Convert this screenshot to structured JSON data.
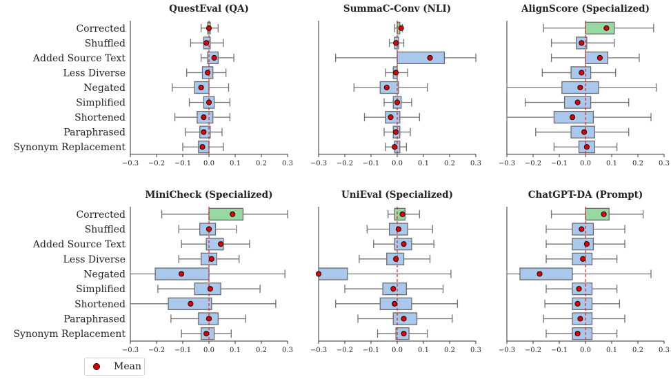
{
  "chart_data": {
    "type": "boxplot",
    "categories": [
      "Corrected",
      "Shuffled",
      "Added Source Text",
      "Less Diverse",
      "Negated",
      "Simplified",
      "Shortened",
      "Paraphrased",
      "Synonym Replacement"
    ],
    "xlim": [
      -0.3,
      0.3
    ],
    "xticks": [
      "−0.3",
      "−0.2",
      "−0.1",
      "0.0",
      "0.1",
      "0.2",
      "0.3"
    ],
    "reference_line_x": 0.0,
    "colors": {
      "box_default": "#aac8eb",
      "box_highlight": "#96d9a2",
      "box_edge": "#6b6b6b",
      "whisker": "#707070",
      "mean_marker": "#e00000",
      "ref_line": "#e02020"
    },
    "legend": {
      "label": "Mean",
      "position": "lower-left"
    },
    "panels": [
      {
        "title": "QuestEval (QA)",
        "boxes": [
          {
            "wl": -0.03,
            "q1": -0.005,
            "q3": 0.005,
            "wh": 0.035,
            "mean": 0.0
          },
          {
            "wl": -0.07,
            "q1": -0.02,
            "q3": 0.005,
            "wh": 0.055,
            "mean": -0.01
          },
          {
            "wl": -0.03,
            "q1": -0.005,
            "q3": 0.035,
            "wh": 0.095,
            "mean": 0.02
          },
          {
            "wl": -0.085,
            "q1": -0.025,
            "q3": 0.015,
            "wh": 0.065,
            "mean": -0.005
          },
          {
            "wl": -0.14,
            "q1": -0.055,
            "q3": 0.0,
            "wh": 0.075,
            "mean": -0.03
          },
          {
            "wl": -0.075,
            "q1": -0.02,
            "q3": 0.02,
            "wh": 0.08,
            "mean": 0.0
          },
          {
            "wl": -0.13,
            "q1": -0.045,
            "q3": 0.015,
            "wh": 0.08,
            "mean": -0.02
          },
          {
            "wl": -0.09,
            "q1": -0.035,
            "q3": 0.005,
            "wh": 0.05,
            "mean": -0.02
          },
          {
            "wl": -0.1,
            "q1": -0.04,
            "q3": 0.0,
            "wh": 0.055,
            "mean": -0.025
          }
        ]
      },
      {
        "title": "SummaC-Conv (NLI)",
        "boxes": [
          {
            "wl": -0.01,
            "q1": 0.0,
            "q3": 0.01,
            "wh": 0.02,
            "mean": 0.015
          },
          {
            "wl": -0.03,
            "q1": -0.01,
            "q3": 0.005,
            "wh": 0.025,
            "mean": -0.005
          },
          {
            "wl": -0.235,
            "q1": 0.0,
            "q3": 0.18,
            "wh": 0.3,
            "mean": 0.125
          },
          {
            "wl": -0.045,
            "q1": -0.015,
            "q3": 0.0,
            "wh": 0.04,
            "mean": -0.005
          },
          {
            "wl": -0.165,
            "q1": -0.065,
            "q3": 0.005,
            "wh": 0.115,
            "mean": -0.04
          },
          {
            "wl": -0.05,
            "q1": -0.015,
            "q3": 0.015,
            "wh": 0.055,
            "mean": 0.0
          },
          {
            "wl": -0.125,
            "q1": -0.045,
            "q3": 0.01,
            "wh": 0.085,
            "mean": -0.025
          },
          {
            "wl": -0.05,
            "q1": -0.015,
            "q3": 0.01,
            "wh": 0.05,
            "mean": -0.005
          },
          {
            "wl": -0.045,
            "q1": -0.01,
            "q3": 0.01,
            "wh": 0.035,
            "mean": -0.01
          }
        ]
      },
      {
        "title": "AlignScore (Specialized)",
        "boxes": [
          {
            "wl": -0.16,
            "q1": 0.0,
            "q3": 0.11,
            "wh": 0.26,
            "mean": 0.08
          },
          {
            "wl": -0.13,
            "q1": -0.035,
            "q3": 0.005,
            "wh": 0.11,
            "mean": -0.015
          },
          {
            "wl": -0.13,
            "q1": 0.0,
            "q3": 0.085,
            "wh": 0.205,
            "mean": 0.055
          },
          {
            "wl": -0.165,
            "q1": -0.055,
            "q3": 0.02,
            "wh": 0.115,
            "mean": -0.015
          },
          {
            "wl": -0.3,
            "q1": -0.09,
            "q3": 0.05,
            "wh": 0.27,
            "mean": -0.02
          },
          {
            "wl": -0.23,
            "q1": -0.08,
            "q3": 0.02,
            "wh": 0.165,
            "mean": -0.03
          },
          {
            "wl": -0.3,
            "q1": -0.12,
            "q3": 0.03,
            "wh": 0.25,
            "mean": -0.05
          },
          {
            "wl": -0.19,
            "q1": -0.055,
            "q3": 0.035,
            "wh": 0.165,
            "mean": -0.005
          },
          {
            "wl": -0.12,
            "q1": -0.025,
            "q3": 0.035,
            "wh": 0.12,
            "mean": 0.005
          }
        ]
      },
      {
        "title": "MiniCheck (Specialized)",
        "boxes": [
          {
            "wl": -0.18,
            "q1": 0.0,
            "q3": 0.13,
            "wh": 0.3,
            "mean": 0.09
          },
          {
            "wl": -0.115,
            "q1": -0.035,
            "q3": 0.025,
            "wh": 0.105,
            "mean": 0.0
          },
          {
            "wl": -0.105,
            "q1": -0.01,
            "q3": 0.055,
            "wh": 0.155,
            "mean": 0.045
          },
          {
            "wl": -0.115,
            "q1": -0.03,
            "q3": 0.03,
            "wh": 0.115,
            "mean": 0.01
          },
          {
            "wl": -0.3,
            "q1": -0.205,
            "q3": 0.0,
            "wh": 0.29,
            "mean": -0.105
          },
          {
            "wl": -0.195,
            "q1": -0.055,
            "q3": 0.045,
            "wh": 0.195,
            "mean": 0.005
          },
          {
            "wl": -0.3,
            "q1": -0.155,
            "q3": 0.01,
            "wh": 0.255,
            "mean": -0.07
          },
          {
            "wl": -0.145,
            "q1": -0.04,
            "q3": 0.035,
            "wh": 0.14,
            "mean": 0.0
          },
          {
            "wl": -0.105,
            "q1": -0.03,
            "q3": 0.02,
            "wh": 0.085,
            "mean": -0.01
          }
        ]
      },
      {
        "title": "UniEval (Specialized)",
        "boxes": [
          {
            "wl": -0.035,
            "q1": -0.01,
            "q3": 0.03,
            "wh": 0.085,
            "mean": 0.02
          },
          {
            "wl": -0.115,
            "q1": -0.03,
            "q3": 0.04,
            "wh": 0.135,
            "mean": 0.005
          },
          {
            "wl": -0.09,
            "q1": -0.01,
            "q3": 0.055,
            "wh": 0.14,
            "mean": 0.025
          },
          {
            "wl": -0.145,
            "q1": -0.04,
            "q3": 0.025,
            "wh": 0.125,
            "mean": -0.005
          },
          {
            "wl": -0.3,
            "q1": -0.3,
            "q3": -0.19,
            "wh": 0.205,
            "mean": -0.3
          },
          {
            "wl": -0.2,
            "q1": -0.055,
            "q3": 0.035,
            "wh": 0.175,
            "mean": -0.015
          },
          {
            "wl": -0.235,
            "q1": -0.065,
            "q3": 0.055,
            "wh": 0.23,
            "mean": -0.01
          },
          {
            "wl": -0.15,
            "q1": -0.015,
            "q3": 0.075,
            "wh": 0.21,
            "mean": 0.025
          },
          {
            "wl": -0.075,
            "q1": -0.005,
            "q3": 0.045,
            "wh": 0.115,
            "mean": 0.025
          }
        ]
      },
      {
        "title": "ChatGPT-DA (Prompt)",
        "boxes": [
          {
            "wl": -0.13,
            "q1": 0.0,
            "q3": 0.09,
            "wh": 0.22,
            "mean": 0.07
          },
          {
            "wl": -0.15,
            "q1": -0.05,
            "q3": 0.03,
            "wh": 0.15,
            "mean": -0.015
          },
          {
            "wl": -0.15,
            "q1": -0.05,
            "q3": 0.03,
            "wh": 0.15,
            "mean": 0.005
          },
          {
            "wl": -0.15,
            "q1": -0.05,
            "q3": 0.025,
            "wh": 0.12,
            "mean": -0.01
          },
          {
            "wl": -0.3,
            "q1": -0.25,
            "q3": -0.05,
            "wh": 0.25,
            "mean": -0.175
          },
          {
            "wl": -0.15,
            "q1": -0.05,
            "q3": 0.025,
            "wh": 0.12,
            "mean": -0.025
          },
          {
            "wl": -0.155,
            "q1": -0.05,
            "q3": 0.025,
            "wh": 0.13,
            "mean": -0.03
          },
          {
            "wl": -0.16,
            "q1": -0.05,
            "q3": 0.025,
            "wh": 0.15,
            "mean": -0.02
          },
          {
            "wl": -0.15,
            "q1": -0.05,
            "q3": 0.025,
            "wh": 0.12,
            "mean": -0.03
          }
        ]
      }
    ]
  }
}
